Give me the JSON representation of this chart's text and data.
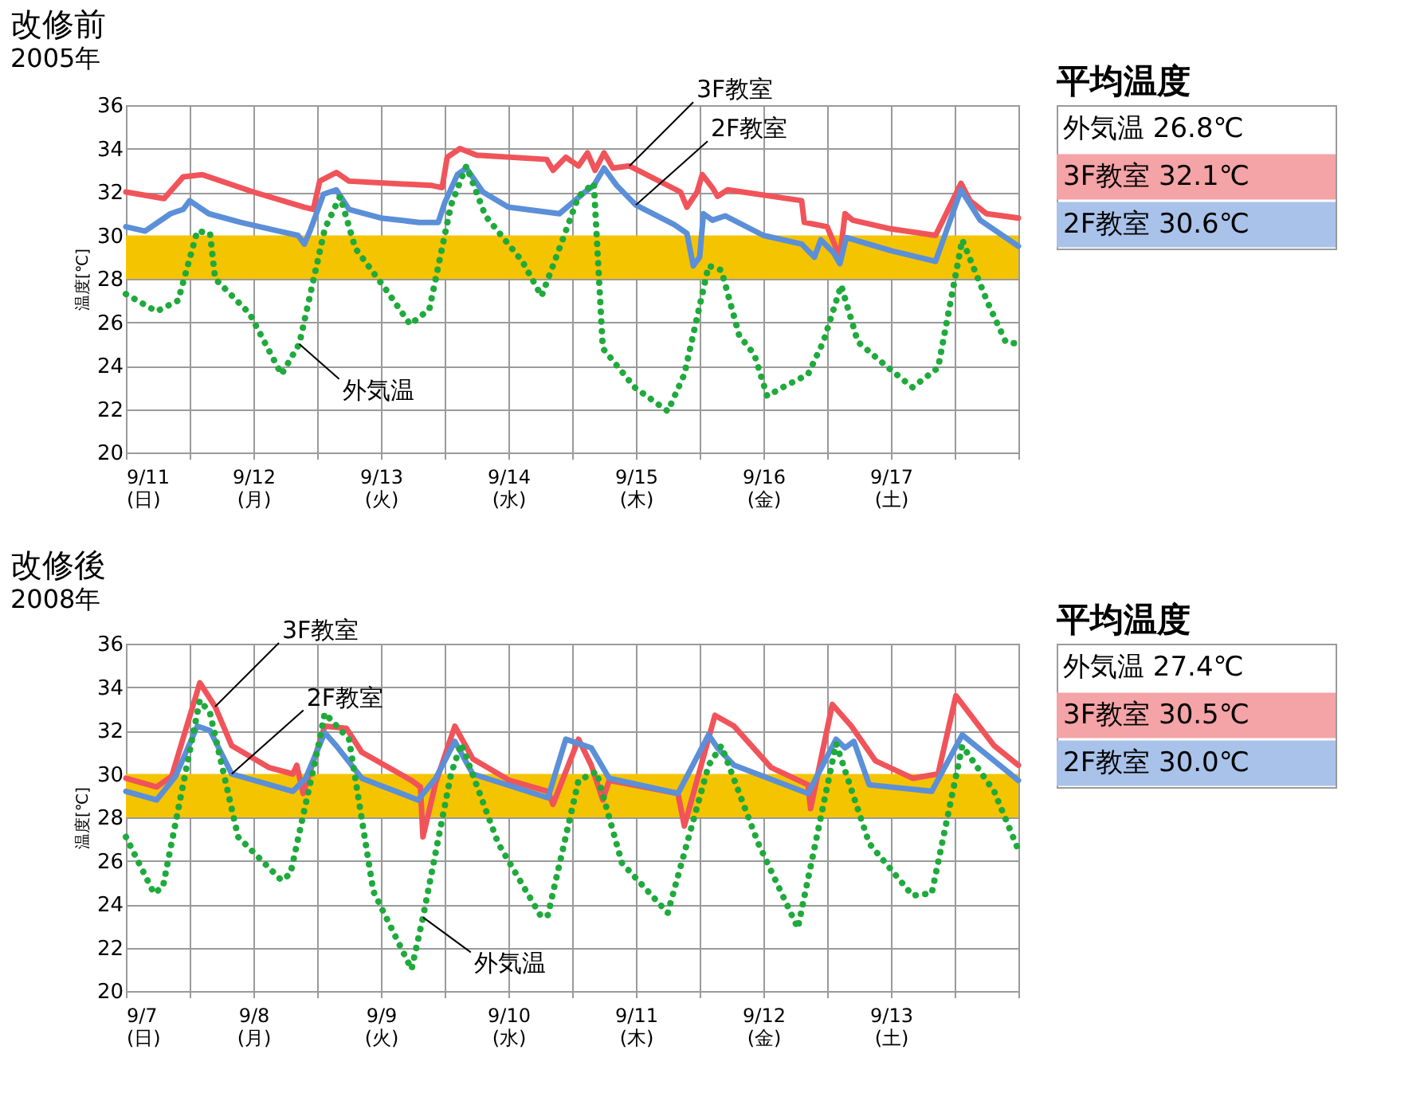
{
  "chart_data": [
    {
      "type": "line",
      "title": "改修前",
      "subtitle": "2005年",
      "ylabel": "温度[℃]",
      "xlim": [
        "2005-09-11T00:00",
        "2005-09-18T00:00"
      ],
      "xticks": [
        {
          "value": "2005-09-11T00:00",
          "label": "9/11 (日)"
        },
        {
          "value": "2005-09-11T12:00",
          "label": null
        },
        {
          "value": "2005-09-12T00:00",
          "label": "9/12 (月)"
        },
        {
          "value": "2005-09-12T12:00",
          "label": null
        },
        {
          "value": "2005-09-13T00:00",
          "label": "9/13 (火)"
        },
        {
          "value": "2005-09-13T12:00",
          "label": null
        },
        {
          "value": "2005-09-14T00:00",
          "label": "9/14 (水)"
        },
        {
          "value": "2005-09-14T12:00",
          "label": null
        },
        {
          "value": "2005-09-15T00:00",
          "label": "9/15 (木)"
        },
        {
          "value": "2005-09-15T12:00",
          "label": null
        },
        {
          "value": "2005-09-16T00:00",
          "label": "9/16 (金)"
        },
        {
          "value": "2005-09-16T12:00",
          "label": null
        },
        {
          "value": "2005-09-17T00:00",
          "label": "9/17 (土)"
        },
        {
          "value": "2005-09-17T12:00",
          "label": null
        },
        {
          "value": "2005-09-18T00:00",
          "label": null
        }
      ],
      "ylim": [
        20,
        36
      ],
      "yticks": [
        20,
        22,
        24,
        26,
        28,
        30,
        32,
        34,
        36
      ],
      "grid": true,
      "bands": [
        {
          "axis": "y",
          "from": 28,
          "to": 30,
          "color": "#f5c400"
        }
      ],
      "series": [
        {
          "name": "3F教室",
          "color": "#f0545a",
          "line_style": "solid",
          "x": [
            "2005-09-11T00:00",
            "2005-09-11T07:12",
            "2005-09-11T10:48",
            "2005-09-11T14:24",
            "2005-09-12T00:00",
            "2005-09-12T09:36",
            "2005-09-12T11:17",
            "2005-09-12T12:29",
            "2005-09-12T15:36",
            "2005-09-12T18:00",
            "2005-09-13T09:36",
            "2005-09-13T11:31",
            "2005-09-13T12:29",
            "2005-09-13T14:53",
            "2005-09-13T18:00",
            "2005-09-14T07:12",
            "2005-09-14T08:24",
            "2005-09-14T10:48",
            "2005-09-14T13:12",
            "2005-09-14T14:53",
            "2005-09-14T16:19",
            "2005-09-14T18:00",
            "2005-09-14T19:41",
            "2005-09-14T22:48",
            "2005-09-15T08:24",
            "2005-09-15T09:36",
            "2005-09-15T11:31",
            "2005-09-15T12:29",
            "2005-09-15T14:24",
            "2005-09-15T15:22",
            "2005-09-15T17:17",
            "2005-09-16T07:12",
            "2005-09-16T07:41",
            "2005-09-16T12:00",
            "2005-09-16T14:24",
            "2005-09-16T15:22",
            "2005-09-16T16:48",
            "2005-09-17T00:00",
            "2005-09-17T08:24",
            "2005-09-17T13:12",
            "2005-09-17T14:53",
            "2005-09-17T18:00",
            "2005-09-18T00:00"
          ],
          "values": [
            32.0,
            31.7,
            32.7,
            32.8,
            32.0,
            31.3,
            31.2,
            32.5,
            32.9,
            32.5,
            32.3,
            32.2,
            33.6,
            34.0,
            33.7,
            33.5,
            33.0,
            33.6,
            33.2,
            33.8,
            33.0,
            33.8,
            33.1,
            33.2,
            32.0,
            31.3,
            32.0,
            32.8,
            32.2,
            31.8,
            32.1,
            31.6,
            30.6,
            30.4,
            29.0,
            31.0,
            30.7,
            30.3,
            30.0,
            32.4,
            31.6,
            31.0,
            30.8
          ]
        },
        {
          "name": "2F教室",
          "color": "#5b8fd8",
          "line_style": "solid",
          "x": [
            "2005-09-11T00:00",
            "2005-09-11T03:36",
            "2005-09-11T08:24",
            "2005-09-11T10:48",
            "2005-09-11T12:00",
            "2005-09-11T15:36",
            "2005-09-11T21:36",
            "2005-09-12T04:48",
            "2005-09-12T08:24",
            "2005-09-12T09:36",
            "2005-09-12T10:48",
            "2005-09-12T13:12",
            "2005-09-12T15:36",
            "2005-09-12T18:00",
            "2005-09-13T00:00",
            "2005-09-13T07:12",
            "2005-09-13T10:48",
            "2005-09-13T12:00",
            "2005-09-13T14:24",
            "2005-09-13T16:05",
            "2005-09-13T19:12",
            "2005-09-14T00:00",
            "2005-09-14T09:36",
            "2005-09-14T12:00",
            "2005-09-14T14:24",
            "2005-09-14T16:05",
            "2005-09-14T18:00",
            "2005-09-14T20:24",
            "2005-09-15T00:00",
            "2005-09-15T07:12",
            "2005-09-15T09:36",
            "2005-09-15T10:48",
            "2005-09-15T12:00",
            "2005-09-15T12:43",
            "2005-09-15T14:24",
            "2005-09-15T16:48",
            "2005-09-16T00:00",
            "2005-09-16T07:12",
            "2005-09-16T09:36",
            "2005-09-16T10:48",
            "2005-09-16T13:12",
            "2005-09-16T14:24",
            "2005-09-16T15:36",
            "2005-09-17T00:00",
            "2005-09-17T08:24",
            "2005-09-17T13:12",
            "2005-09-17T16:48",
            "2005-09-18T00:00"
          ],
          "values": [
            30.4,
            30.2,
            31.0,
            31.2,
            31.6,
            31.0,
            30.6,
            30.2,
            30.0,
            29.6,
            30.3,
            31.9,
            32.1,
            31.2,
            30.8,
            30.6,
            30.6,
            31.5,
            32.8,
            33.1,
            32.0,
            31.3,
            31.0,
            31.5,
            32.0,
            32.3,
            33.1,
            32.3,
            31.4,
            30.5,
            30.1,
            28.6,
            29.0,
            31.0,
            30.7,
            30.9,
            30.0,
            29.6,
            29.0,
            29.8,
            29.2,
            28.7,
            29.9,
            29.3,
            28.8,
            32.1,
            30.7,
            29.5
          ]
        },
        {
          "name": "外気温",
          "color": "#1faa3c",
          "line_style": "dotted",
          "x": [
            "2005-09-11T00:00",
            "2005-09-11T05:46",
            "2005-09-11T09:50",
            "2005-09-11T13:26",
            "2005-09-11T15:50",
            "2005-09-11T16:48",
            "2005-09-11T23:17",
            "2005-09-12T05:17",
            "2005-09-12T08:38",
            "2005-09-12T13:26",
            "2005-09-12T16:19",
            "2005-09-12T19:12",
            "2005-09-13T00:58",
            "2005-09-13T05:31",
            "2005-09-13T09:07",
            "2005-09-13T13:12",
            "2005-09-13T16:05",
            "2005-09-13T19:41",
            "2005-09-14T02:38",
            "2005-09-14T06:14",
            "2005-09-14T09:36",
            "2005-09-14T13:12",
            "2005-09-14T16:05",
            "2005-09-14T17:46",
            "2005-09-14T23:46",
            "2005-09-15T06:00",
            "2005-09-15T09:07",
            "2005-09-15T13:41",
            "2005-09-15T16:05",
            "2005-09-15T19:26",
            "2005-09-15T22:19",
            "2005-09-16T00:43",
            "2005-09-16T03:36",
            "2005-09-16T08:24",
            "2005-09-16T11:17",
            "2005-09-16T14:38",
            "2005-09-16T17:46",
            "2005-09-16T23:31",
            "2005-09-17T04:05",
            "2005-09-17T08:53",
            "2005-09-17T13:26",
            "2005-09-17T18:14",
            "2005-09-17T21:36",
            "2005-09-18T00:00"
          ],
          "values": [
            27.3,
            26.5,
            27.0,
            30.2,
            30.1,
            28.0,
            26.4,
            23.6,
            25.0,
            30.3,
            31.8,
            29.4,
            27.5,
            25.9,
            26.6,
            31.4,
            33.2,
            30.9,
            28.8,
            27.2,
            29.4,
            31.8,
            32.4,
            24.8,
            23.0,
            21.9,
            23.6,
            28.6,
            28.4,
            25.4,
            24.5,
            22.6,
            23.0,
            23.6,
            25.1,
            27.7,
            25.1,
            23.9,
            23.0,
            23.9,
            29.8,
            26.9,
            25.1,
            25.0
          ]
        }
      ]
    },
    {
      "type": "other",
      "title": "平均温度",
      "annotations": [
        "外気温  26.8℃",
        "3F教室  32.1℃",
        "2F教室  30.6℃"
      ],
      "colors": [
        null,
        "#f4a3a6",
        "#a9c2ea"
      ]
    },
    {
      "type": "line",
      "title": "改修後",
      "subtitle": "2008年",
      "ylabel": "温度[℃]",
      "xlim": [
        "2008-09-07T00:00",
        "2008-09-14T00:00"
      ],
      "xticks": [
        {
          "value": "2008-09-07T00:00",
          "label": "9/7 (日)"
        },
        {
          "value": "2008-09-07T12:00",
          "label": null
        },
        {
          "value": "2008-09-08T00:00",
          "label": "9/8 (月)"
        },
        {
          "value": "2008-09-08T12:00",
          "label": null
        },
        {
          "value": "2008-09-09T00:00",
          "label": "9/9 (火)"
        },
        {
          "value": "2008-09-09T12:00",
          "label": null
        },
        {
          "value": "2008-09-10T00:00",
          "label": "9/10 (水)"
        },
        {
          "value": "2008-09-10T12:00",
          "label": null
        },
        {
          "value": "2008-09-11T00:00",
          "label": "9/11 (木)"
        },
        {
          "value": "2008-09-11T12:00",
          "label": null
        },
        {
          "value": "2008-09-12T00:00",
          "label": "9/12 (金)"
        },
        {
          "value": "2008-09-12T12:00",
          "label": null
        },
        {
          "value": "2008-09-13T00:00",
          "label": "9/13 (土)"
        },
        {
          "value": "2008-09-13T12:00",
          "label": null
        },
        {
          "value": "2008-09-14T00:00",
          "label": null
        }
      ],
      "ylim": [
        20,
        36
      ],
      "yticks": [
        20,
        22,
        24,
        26,
        28,
        30,
        32,
        34,
        36
      ],
      "grid": true,
      "bands": [
        {
          "axis": "y",
          "from": 28,
          "to": 30,
          "color": "#f5c400"
        }
      ],
      "series": [
        {
          "name": "3F教室",
          "color": "#f0545a",
          "line_style": "solid",
          "x": [
            "2008-09-07T00:00",
            "2008-09-07T05:46",
            "2008-09-07T08:38",
            "2008-09-07T13:55",
            "2008-09-07T16:48",
            "2008-09-07T19:55",
            "2008-09-08T02:53",
            "2008-09-08T07:26",
            "2008-09-08T08:10",
            "2008-09-08T09:22",
            "2008-09-08T13:26",
            "2008-09-08T17:31",
            "2008-09-08T20:24",
            "2008-09-09T05:46",
            "2008-09-09T07:26",
            "2008-09-09T07:55",
            "2008-09-09T10:19",
            "2008-09-09T13:55",
            "2008-09-09T17:17",
            "2008-09-10T00:14",
            "2008-09-10T07:26",
            "2008-09-10T08:24",
            "2008-09-10T13:12",
            "2008-09-10T15:36",
            "2008-09-10T17:46",
            "2008-09-10T18:58",
            "2008-09-11T07:55",
            "2008-09-11T09:07",
            "2008-09-11T14:53",
            "2008-09-11T18:29",
            "2008-09-12T01:26",
            "2008-09-12T08:24",
            "2008-09-12T08:53",
            "2008-09-12T12:58",
            "2008-09-12T16:34",
            "2008-09-12T21:07",
            "2008-09-13T04:05",
            "2008-09-13T08:53",
            "2008-09-13T12:14",
            "2008-09-13T19:26",
            "2008-09-14T00:00"
          ],
          "values": [
            29.8,
            29.4,
            29.9,
            34.2,
            33.1,
            31.3,
            30.3,
            30.0,
            30.4,
            29.1,
            32.2,
            32.1,
            31.0,
            29.7,
            29.4,
            27.1,
            29.6,
            32.2,
            30.7,
            29.7,
            29.2,
            28.6,
            31.6,
            30.4,
            28.8,
            29.7,
            29.1,
            27.6,
            32.7,
            32.2,
            30.3,
            29.5,
            28.4,
            33.2,
            32.2,
            30.6,
            29.8,
            30.0,
            33.6,
            31.3,
            30.4
          ]
        },
        {
          "name": "2F教室",
          "color": "#5b8fd8",
          "line_style": "solid",
          "x": [
            "2008-09-07T00:00",
            "2008-09-07T05:46",
            "2008-09-07T09:22",
            "2008-09-07T13:26",
            "2008-09-07T15:50",
            "2008-09-07T19:55",
            "2008-09-08T07:26",
            "2008-09-08T09:50",
            "2008-09-08T13:26",
            "2008-09-08T15:36",
            "2008-09-08T20:24",
            "2008-09-09T06:58",
            "2008-09-09T10:19",
            "2008-09-09T13:55",
            "2008-09-09T17:17",
            "2008-09-10T07:26",
            "2008-09-10T10:48",
            "2008-09-10T15:36",
            "2008-09-10T18:58",
            "2008-09-11T07:55",
            "2008-09-11T13:41",
            "2008-09-11T15:22",
            "2008-09-11T18:29",
            "2008-09-12T08:24",
            "2008-09-12T13:41",
            "2008-09-12T15:22",
            "2008-09-12T17:02",
            "2008-09-12T19:55",
            "2008-09-13T07:41",
            "2008-09-13T13:26",
            "2008-09-14T00:00"
          ],
          "values": [
            29.2,
            28.8,
            29.9,
            32.2,
            32.0,
            30.0,
            29.2,
            29.8,
            31.9,
            31.3,
            29.8,
            28.8,
            29.8,
            31.5,
            30.0,
            28.9,
            31.6,
            31.2,
            29.8,
            29.1,
            31.8,
            31.2,
            30.4,
            29.1,
            31.6,
            31.2,
            31.5,
            29.5,
            29.2,
            31.8,
            29.7
          ]
        },
        {
          "name": "外気温",
          "color": "#1faa3c",
          "line_style": "dotted",
          "x": [
            "2008-09-07T00:00",
            "2008-09-07T05:17",
            "2008-09-07T06:58",
            "2008-09-07T13:55",
            "2008-09-07T15:50",
            "2008-09-07T21:07",
            "2008-09-08T05:17",
            "2008-09-08T06:58",
            "2008-09-08T12:14",
            "2008-09-08T13:26",
            "2008-09-08T18:00",
            "2008-09-08T22:34",
            "2008-09-09T05:46",
            "2008-09-09T07:55",
            "2008-09-09T13:12",
            "2008-09-09T15:07",
            "2008-09-09T22:05",
            "2008-09-10T06:14",
            "2008-09-10T07:26",
            "2008-09-10T13:12",
            "2008-09-10T16:34",
            "2008-09-10T21:22",
            "2008-09-11T06:00",
            "2008-09-11T13:41",
            "2008-09-11T16:05",
            "2008-09-11T23:02",
            "2008-09-12T06:29",
            "2008-09-12T13:41",
            "2008-09-12T19:55",
            "2008-09-13T04:05",
            "2008-09-13T07:41",
            "2008-09-13T13:26",
            "2008-09-13T19:26",
            "2008-09-14T00:00"
          ],
          "values": [
            27.1,
            24.5,
            24.8,
            33.4,
            32.8,
            27.1,
            25.1,
            25.4,
            31.3,
            32.8,
            31.6,
            24.6,
            21.0,
            23.4,
            30.0,
            31.4,
            26.8,
            23.4,
            23.5,
            29.7,
            30.1,
            25.9,
            23.6,
            30.4,
            31.3,
            26.8,
            22.9,
            31.4,
            26.8,
            24.4,
            24.5,
            31.3,
            29.2,
            26.5
          ]
        }
      ]
    },
    {
      "type": "other",
      "title": "平均温度",
      "annotations": [
        "外気温  27.4℃",
        "3F教室  30.5℃",
        "2F教室  30.0℃"
      ],
      "colors": [
        null,
        "#f4a3a6",
        "#a9c2ea"
      ]
    }
  ]
}
